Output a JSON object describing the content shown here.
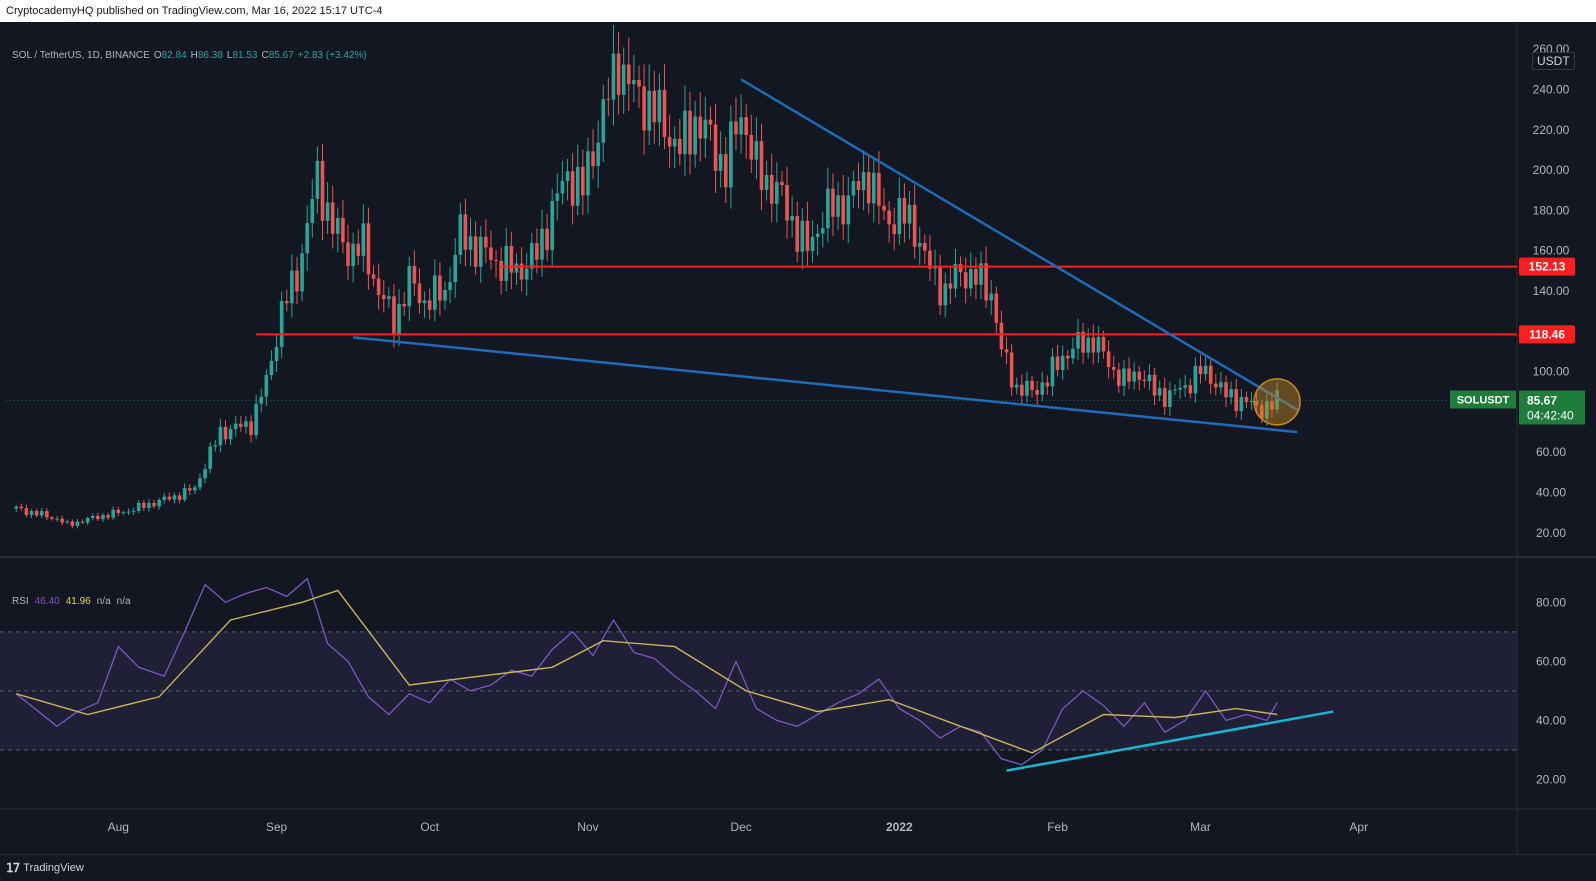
{
  "header": {
    "published_text": "CryptocademyHQ published on TradingView.com, Mar 16, 2022 15:17 UTC-4"
  },
  "legend": {
    "symbol": "SOL / TetherUS, 1D, BINANCE",
    "open_label": "O",
    "open": "82.84",
    "high_label": "H",
    "high": "86.38",
    "low_label": "L",
    "low": "81.53",
    "close_label": "C",
    "close": "85.67",
    "change": "+2.83 (+3.42%)"
  },
  "rsi_legend": {
    "name": "RSI",
    "value1": "46.40",
    "value2": "41.96",
    "na1": "n/a",
    "na2": "n/a"
  },
  "axis": {
    "currency": "USDT"
  },
  "price_tag": {
    "symbol": "SOLUSDT",
    "price": "85.67",
    "countdown": "04:42:40"
  },
  "levels": [
    {
      "label": "152.13",
      "value": 152.13
    },
    {
      "label": "118.46",
      "value": 118.46
    }
  ],
  "branding": {
    "logo_text": "TradingView"
  },
  "colors": {
    "background": "#131722",
    "up": "#26a69a",
    "down": "#ef5350",
    "trendline": "#1e6bb8",
    "support": "#ff1e1e",
    "rsi": "#7e57c2",
    "rsi_ma": "#c9b458",
    "rsi_trend": "#19b6d2",
    "highlight": "#c58a1e"
  },
  "chart_data": [
    {
      "type": "candlestick",
      "title": "SOL / TetherUS, 1D, BINANCE",
      "x_tick_labels": [
        "Aug",
        "Sep",
        "Oct",
        "Nov",
        "Dec",
        "2022",
        "Feb",
        "Mar",
        "Apr"
      ],
      "ylim": [
        0,
        270
      ],
      "y_ticks": [
        20,
        40,
        60,
        80,
        100,
        120,
        140,
        160,
        180,
        200,
        220,
        240,
        260
      ],
      "y_tick_labels": [
        "20.00",
        "40.00",
        "60.00",
        "80.00",
        "100.00",
        "120.00",
        "140.00",
        "160.00",
        "180.00",
        "200.00",
        "220.00",
        "240.00",
        "260.00"
      ],
      "close_series": [
        {
          "date": "2021-07-12",
          "close": 32
        },
        {
          "date": "2021-07-20",
          "close": 27
        },
        {
          "date": "2021-07-22",
          "close": 24
        },
        {
          "date": "2021-07-28",
          "close": 28
        },
        {
          "date": "2021-08-03",
          "close": 31
        },
        {
          "date": "2021-08-08",
          "close": 35
        },
        {
          "date": "2021-08-12",
          "close": 38
        },
        {
          "date": "2021-08-16",
          "close": 42
        },
        {
          "date": "2021-08-18",
          "close": 54
        },
        {
          "date": "2021-08-21",
          "close": 70
        },
        {
          "date": "2021-08-24",
          "close": 72
        },
        {
          "date": "2021-08-27",
          "close": 74
        },
        {
          "date": "2021-08-30",
          "close": 95
        },
        {
          "date": "2021-09-02",
          "close": 130
        },
        {
          "date": "2021-09-05",
          "close": 148
        },
        {
          "date": "2021-09-07",
          "close": 172
        },
        {
          "date": "2021-09-09",
          "close": 196
        },
        {
          "date": "2021-09-12",
          "close": 172
        },
        {
          "date": "2021-09-15",
          "close": 160
        },
        {
          "date": "2021-09-18",
          "close": 162
        },
        {
          "date": "2021-09-21",
          "close": 140
        },
        {
          "date": "2021-09-24",
          "close": 125
        },
        {
          "date": "2021-09-27",
          "close": 145
        },
        {
          "date": "2021-09-30",
          "close": 135
        },
        {
          "date": "2021-10-04",
          "close": 140
        },
        {
          "date": "2021-10-07",
          "close": 168
        },
        {
          "date": "2021-10-10",
          "close": 162
        },
        {
          "date": "2021-10-14",
          "close": 155
        },
        {
          "date": "2021-10-18",
          "close": 150
        },
        {
          "date": "2021-10-22",
          "close": 158
        },
        {
          "date": "2021-10-25",
          "close": 180
        },
        {
          "date": "2021-10-28",
          "close": 198
        },
        {
          "date": "2021-10-31",
          "close": 190
        },
        {
          "date": "2021-11-03",
          "close": 220
        },
        {
          "date": "2021-11-06",
          "close": 245
        },
        {
          "date": "2021-11-07",
          "close": 255
        },
        {
          "date": "2021-11-10",
          "close": 238
        },
        {
          "date": "2021-11-13",
          "close": 233
        },
        {
          "date": "2021-11-16",
          "close": 222
        },
        {
          "date": "2021-11-19",
          "close": 210
        },
        {
          "date": "2021-11-22",
          "close": 225
        },
        {
          "date": "2021-11-25",
          "close": 215
        },
        {
          "date": "2021-11-28",
          "close": 200
        },
        {
          "date": "2021-12-01",
          "close": 230
        },
        {
          "date": "2021-12-04",
          "close": 200
        },
        {
          "date": "2021-12-08",
          "close": 190
        },
        {
          "date": "2021-12-11",
          "close": 175
        },
        {
          "date": "2021-12-14",
          "close": 160
        },
        {
          "date": "2021-12-17",
          "close": 178
        },
        {
          "date": "2021-12-20",
          "close": 182
        },
        {
          "date": "2021-12-23",
          "close": 188
        },
        {
          "date": "2021-12-26",
          "close": 198
        },
        {
          "date": "2021-12-29",
          "close": 175
        },
        {
          "date": "2022-01-01",
          "close": 178
        },
        {
          "date": "2022-01-04",
          "close": 172
        },
        {
          "date": "2022-01-07",
          "close": 150
        },
        {
          "date": "2022-01-10",
          "close": 140
        },
        {
          "date": "2022-01-13",
          "close": 150
        },
        {
          "date": "2022-01-16",
          "close": 146
        },
        {
          "date": "2022-01-19",
          "close": 140
        },
        {
          "date": "2022-01-21",
          "close": 110
        },
        {
          "date": "2022-01-24",
          "close": 92
        },
        {
          "date": "2022-01-27",
          "close": 90
        },
        {
          "date": "2022-01-30",
          "close": 96
        },
        {
          "date": "2022-02-02",
          "close": 108
        },
        {
          "date": "2022-02-05",
          "close": 113
        },
        {
          "date": "2022-02-08",
          "close": 116
        },
        {
          "date": "2022-02-11",
          "close": 104
        },
        {
          "date": "2022-02-14",
          "close": 95
        },
        {
          "date": "2022-02-17",
          "close": 100
        },
        {
          "date": "2022-02-20",
          "close": 90
        },
        {
          "date": "2022-02-23",
          "close": 88
        },
        {
          "date": "2022-02-26",
          "close": 93
        },
        {
          "date": "2022-03-01",
          "close": 100
        },
        {
          "date": "2022-03-03",
          "close": 98
        },
        {
          "date": "2022-03-06",
          "close": 88
        },
        {
          "date": "2022-03-09",
          "close": 86
        },
        {
          "date": "2022-03-12",
          "close": 82
        },
        {
          "date": "2022-03-15",
          "close": 82.84
        },
        {
          "date": "2022-03-16",
          "close": 85.67
        }
      ],
      "annotations": [
        {
          "type": "hline",
          "value": 152.13,
          "label": "152.13"
        },
        {
          "type": "hline",
          "value": 118.46,
          "label": "118.46"
        },
        {
          "type": "trendline",
          "from": {
            "date": "2021-12-01",
            "value": 245
          },
          "to": {
            "date": "2022-03-20",
            "value": 81
          }
        },
        {
          "type": "trendline",
          "from": {
            "date": "2021-09-16",
            "value": 117
          },
          "to": {
            "date": "2022-03-20",
            "value": 70
          }
        },
        {
          "type": "circle",
          "date": "2022-03-16",
          "value": 85
        }
      ]
    },
    {
      "type": "line",
      "title": "RSI",
      "ylim": [
        10,
        95
      ],
      "y_ticks": [
        20,
        40,
        60,
        80
      ],
      "y_tick_labels": [
        "20.00",
        "40.00",
        "60.00",
        "80.00"
      ],
      "bands": [
        30,
        50,
        70
      ],
      "series": [
        {
          "values": [
            [
              "2021-07-12",
              49
            ],
            [
              "2021-07-20",
              38
            ],
            [
              "2021-07-24",
              43
            ],
            [
              "2021-07-28",
              46
            ],
            [
              "2021-08-01",
              65
            ],
            [
              "2021-08-05",
              58
            ],
            [
              "2021-08-10",
              55
            ],
            [
              "2021-08-14",
              70
            ],
            [
              "2021-08-18",
              86
            ],
            [
              "2021-08-22",
              80
            ],
            [
              "2021-08-26",
              83
            ],
            [
              "2021-08-30",
              85
            ],
            [
              "2021-09-03",
              82
            ],
            [
              "2021-09-07",
              88
            ],
            [
              "2021-09-11",
              66
            ],
            [
              "2021-09-15",
              60
            ],
            [
              "2021-09-19",
              48
            ],
            [
              "2021-09-23",
              42
            ],
            [
              "2021-09-27",
              49
            ],
            [
              "2021-10-01",
              46
            ],
            [
              "2021-10-05",
              54
            ],
            [
              "2021-10-09",
              50
            ],
            [
              "2021-10-13",
              52
            ],
            [
              "2021-10-17",
              57
            ],
            [
              "2021-10-21",
              55
            ],
            [
              "2021-10-25",
              64
            ],
            [
              "2021-10-29",
              70
            ],
            [
              "2021-11-02",
              62
            ],
            [
              "2021-11-06",
              74
            ],
            [
              "2021-11-10",
              63
            ],
            [
              "2021-11-14",
              61
            ],
            [
              "2021-11-18",
              55
            ],
            [
              "2021-11-22",
              50
            ],
            [
              "2021-11-26",
              44
            ],
            [
              "2021-11-30",
              60
            ],
            [
              "2021-12-04",
              44
            ],
            [
              "2021-12-08",
              40
            ],
            [
              "2021-12-12",
              38
            ],
            [
              "2021-12-16",
              42
            ],
            [
              "2021-12-20",
              46
            ],
            [
              "2021-12-24",
              49
            ],
            [
              "2021-12-28",
              54
            ],
            [
              "2022-01-01",
              44
            ],
            [
              "2022-01-05",
              40
            ],
            [
              "2022-01-09",
              34
            ],
            [
              "2022-01-13",
              38
            ],
            [
              "2022-01-17",
              36
            ],
            [
              "2022-01-21",
              27
            ],
            [
              "2022-01-25",
              25
            ],
            [
              "2022-01-29",
              30
            ],
            [
              "2022-02-02",
              44
            ],
            [
              "2022-02-06",
              50
            ],
            [
              "2022-02-10",
              45
            ],
            [
              "2022-02-14",
              38
            ],
            [
              "2022-02-18",
              46
            ],
            [
              "2022-02-22",
              36
            ],
            [
              "2022-02-26",
              40
            ],
            [
              "2022-03-02",
              50
            ],
            [
              "2022-03-06",
              40
            ],
            [
              "2022-03-10",
              42
            ],
            [
              "2022-03-14",
              40
            ],
            [
              "2022-03-16",
              46
            ]
          ]
        },
        {
          "values": [
            [
              "2021-07-12",
              49
            ],
            [
              "2021-07-26",
              42
            ],
            [
              "2021-08-09",
              48
            ],
            [
              "2021-08-23",
              74
            ],
            [
              "2021-09-06",
              80
            ],
            [
              "2021-09-13",
              84
            ],
            [
              "2021-09-27",
              52
            ],
            [
              "2021-10-11",
              55
            ],
            [
              "2021-10-25",
              58
            ],
            [
              "2021-11-04",
              67
            ],
            [
              "2021-11-18",
              65
            ],
            [
              "2021-12-02",
              50
            ],
            [
              "2021-12-16",
              43
            ],
            [
              "2021-12-30",
              47
            ],
            [
              "2022-01-13",
              38
            ],
            [
              "2022-01-27",
              29
            ],
            [
              "2022-02-10",
              42
            ],
            [
              "2022-02-24",
              41
            ],
            [
              "2022-03-08",
              44
            ],
            [
              "2022-03-16",
              42
            ]
          ]
        }
      ],
      "annotations": [
        {
          "type": "trendline",
          "from": {
            "date": "2022-01-22",
            "value": 23
          },
          "to": {
            "date": "2022-03-27",
            "value": 43
          }
        }
      ]
    }
  ]
}
